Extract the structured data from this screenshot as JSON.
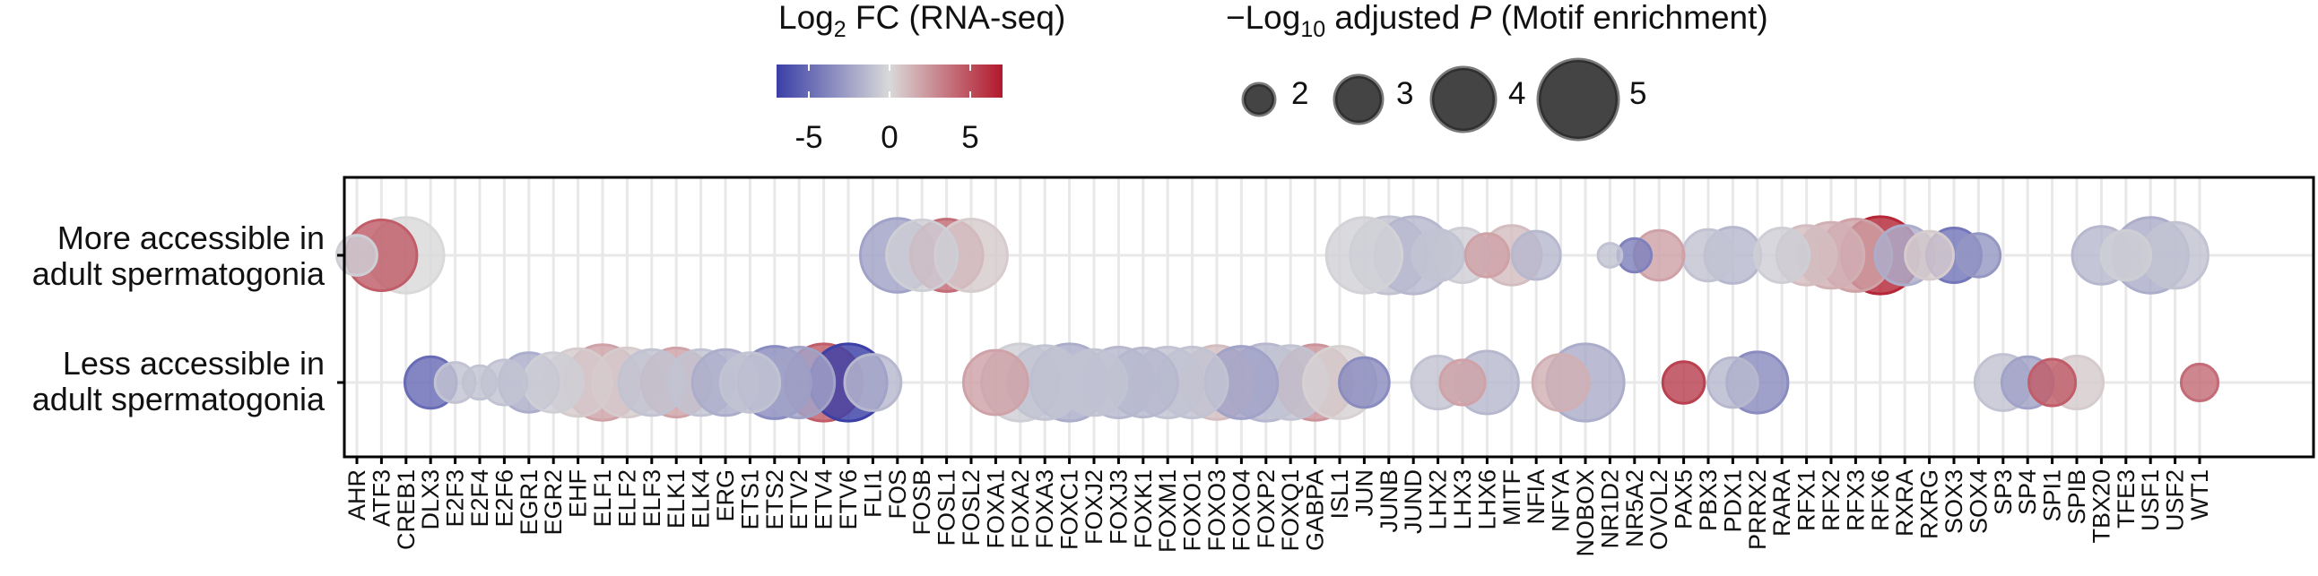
{
  "legend": {
    "color": {
      "title_prefix": "Log",
      "title_sub": "2",
      "title_suffix": " FC (RNA-seq)",
      "ticks": [
        -5,
        0,
        5
      ],
      "range": [
        -7,
        7
      ]
    },
    "size": {
      "title_prefix": "−Log",
      "title_sub": "10",
      "title_mid": " adjusted ",
      "title_italic": "P",
      "title_suffix": " (Motif enrichment)",
      "values": [
        2,
        3,
        4,
        5
      ]
    }
  },
  "colors": {
    "low": "#3b3fa6",
    "mid": "#d9d9d9",
    "high": "#b2182b",
    "grid": "#e8e8e8",
    "frame": "#000000",
    "marker_border_alpha": 0.25
  },
  "chart_data": {
    "type": "scatter",
    "rows": [
      {
        "id": "more",
        "label_line1": "More accessible in",
        "label_line2": "adult spermatogonia"
      },
      {
        "id": "less",
        "label_line1": "Less accessible in",
        "label_line2": "adult spermatogonia"
      }
    ],
    "categories": [
      "AHR",
      "ATF3",
      "CREB1",
      "DLX3",
      "E2F3",
      "E2F4",
      "E2F6",
      "EGR1",
      "EGR2",
      "EHF",
      "ELF1",
      "ELF2",
      "ELF3",
      "ELK1",
      "ELK4",
      "ERG",
      "ETS1",
      "ETS2",
      "ETV2",
      "ETV4",
      "ETV6",
      "FLI1",
      "FOS",
      "FOSB",
      "FOSL1",
      "FOSL2",
      "FOXA1",
      "FOXA2",
      "FOXA3",
      "FOXC1",
      "FOXJ2",
      "FOXJ3",
      "FOXK1",
      "FOXM1",
      "FOXO1",
      "FOXO3",
      "FOXO4",
      "FOXP2",
      "FOXQ1",
      "GABPA",
      "ISL1",
      "JUN",
      "JUNB",
      "JUND",
      "LHX2",
      "LHX3",
      "LHX6",
      "MITF",
      "NFIA",
      "NFYA",
      "NOBOX",
      "NR1D2",
      "NR5A2",
      "OVOL2",
      "PAX5",
      "PBX3",
      "PDX1",
      "PRRX2",
      "RARA",
      "RFX1",
      "RFX2",
      "RFX3",
      "RFX6",
      "RXRA",
      "RXRG",
      "SOX3",
      "SOX4",
      "SP3",
      "SP4",
      "SPI1",
      "SPIB",
      "TBX20",
      "TFE3",
      "USF1",
      "USF2",
      "WT1"
    ],
    "points": [
      {
        "tf": "AHR",
        "row": "more",
        "log2fc": -0.5,
        "neglog10p": 2.6
      },
      {
        "tf": "ATF3",
        "row": "more",
        "log2fc": 4.5,
        "neglog10p": 4.5
      },
      {
        "tf": "CREB1",
        "row": "more",
        "log2fc": 0.0,
        "neglog10p": 4.8
      },
      {
        "tf": "FOS",
        "row": "more",
        "log2fc": -2.5,
        "neglog10p": 4.7
      },
      {
        "tf": "FOSB",
        "row": "more",
        "log2fc": -0.5,
        "neglog10p": 4.5
      },
      {
        "tf": "FOSL1",
        "row": "more",
        "log2fc": 4.0,
        "neglog10p": 4.6
      },
      {
        "tf": "FOSL2",
        "row": "more",
        "log2fc": 0.5,
        "neglog10p": 4.6
      },
      {
        "tf": "JUN",
        "row": "more",
        "log2fc": -0.3,
        "neglog10p": 4.8
      },
      {
        "tf": "JUNB",
        "row": "more",
        "log2fc": -1.0,
        "neglog10p": 4.9
      },
      {
        "tf": "JUND",
        "row": "more",
        "log2fc": -1.5,
        "neglog10p": 4.9
      },
      {
        "tf": "LHX2",
        "row": "more",
        "log2fc": -1.0,
        "neglog10p": 3.3
      },
      {
        "tf": "LHX3",
        "row": "more",
        "log2fc": -0.5,
        "neglog10p": 3.5
      },
      {
        "tf": "LHX6",
        "row": "more",
        "log2fc": 2.0,
        "neglog10p": 2.8
      },
      {
        "tf": "MITF",
        "row": "more",
        "log2fc": 1.0,
        "neglog10p": 3.8
      },
      {
        "tf": "NFIA",
        "row": "more",
        "log2fc": -1.5,
        "neglog10p": 3.1
      },
      {
        "tf": "NR1D2",
        "row": "more",
        "log2fc": -1.0,
        "neglog10p": 1.6
      },
      {
        "tf": "NR5A2",
        "row": "more",
        "log2fc": -4.0,
        "neglog10p": 2.2
      },
      {
        "tf": "OVOL2",
        "row": "more",
        "log2fc": 2.0,
        "neglog10p": 3.2
      },
      {
        "tf": "PBX3",
        "row": "more",
        "log2fc": -1.0,
        "neglog10p": 3.3
      },
      {
        "tf": "PDX1",
        "row": "more",
        "log2fc": -1.5,
        "neglog10p": 3.6
      },
      {
        "tf": "RARA",
        "row": "more",
        "log2fc": -0.5,
        "neglog10p": 3.5
      },
      {
        "tf": "RFX1",
        "row": "more",
        "log2fc": 1.0,
        "neglog10p": 3.8
      },
      {
        "tf": "RFX2",
        "row": "more",
        "log2fc": 1.5,
        "neglog10p": 4.2
      },
      {
        "tf": "RFX3",
        "row": "more",
        "log2fc": 2.0,
        "neglog10p": 4.6
      },
      {
        "tf": "RFX6",
        "row": "more",
        "log2fc": 6.5,
        "neglog10p": 4.9
      },
      {
        "tf": "RXRA",
        "row": "more",
        "log2fc": -2.0,
        "neglog10p": 3.8
      },
      {
        "tf": "RXRG",
        "row": "more",
        "log2fc": 0.5,
        "neglog10p": 3.1
      },
      {
        "tf": "SOX3",
        "row": "more",
        "log2fc": -4.5,
        "neglog10p": 3.5
      },
      {
        "tf": "SOX4",
        "row": "more",
        "log2fc": -3.0,
        "neglog10p": 2.8
      },
      {
        "tf": "TBX20",
        "row": "more",
        "log2fc": -1.5,
        "neglog10p": 3.7
      },
      {
        "tf": "TFE3",
        "row": "more",
        "log2fc": -0.5,
        "neglog10p": 3.2
      },
      {
        "tf": "USF1",
        "row": "more",
        "log2fc": -2.0,
        "neglog10p": 4.8
      },
      {
        "tf": "USF2",
        "row": "more",
        "log2fc": -1.0,
        "neglog10p": 4.2
      },
      {
        "tf": "DLX3",
        "row": "less",
        "log2fc": -5.0,
        "neglog10p": 3.3
      },
      {
        "tf": "E2F3",
        "row": "less",
        "log2fc": -1.0,
        "neglog10p": 2.6
      },
      {
        "tf": "E2F4",
        "row": "less",
        "log2fc": -1.0,
        "neglog10p": 2.2
      },
      {
        "tf": "E2F6",
        "row": "less",
        "log2fc": -1.0,
        "neglog10p": 2.9
      },
      {
        "tf": "EGR1",
        "row": "less",
        "log2fc": -2.0,
        "neglog10p": 3.8
      },
      {
        "tf": "EGR2",
        "row": "less",
        "log2fc": -0.5,
        "neglog10p": 3.8
      },
      {
        "tf": "EHF",
        "row": "less",
        "log2fc": 0.5,
        "neglog10p": 4.3
      },
      {
        "tf": "ELF1",
        "row": "less",
        "log2fc": 2.0,
        "neglog10p": 4.8
      },
      {
        "tf": "ELF2",
        "row": "less",
        "log2fc": 0.5,
        "neglog10p": 4.4
      },
      {
        "tf": "ELF3",
        "row": "less",
        "log2fc": -1.0,
        "neglog10p": 4.2
      },
      {
        "tf": "ELK1",
        "row": "less",
        "log2fc": 2.0,
        "neglog10p": 4.4
      },
      {
        "tf": "ELK4",
        "row": "less",
        "log2fc": -1.0,
        "neglog10p": 4.2
      },
      {
        "tf": "ERG",
        "row": "less",
        "log2fc": -2.0,
        "neglog10p": 4.2
      },
      {
        "tf": "ETS1",
        "row": "less",
        "log2fc": -1.0,
        "neglog10p": 3.8
      },
      {
        "tf": "ETS2",
        "row": "less",
        "log2fc": -3.5,
        "neglog10p": 4.6
      },
      {
        "tf": "ETV2",
        "row": "less",
        "log2fc": -2.5,
        "neglog10p": 4.5
      },
      {
        "tf": "ETV4",
        "row": "less",
        "log2fc": 4.5,
        "neglog10p": 4.9
      },
      {
        "tf": "ETV6",
        "row": "less",
        "log2fc": -7.0,
        "neglog10p": 4.9
      },
      {
        "tf": "FLI1",
        "row": "less",
        "log2fc": -1.5,
        "neglog10p": 3.6
      },
      {
        "tf": "FOXA1",
        "row": "less",
        "log2fc": 2.0,
        "neglog10p": 4.1
      },
      {
        "tf": "FOXA2",
        "row": "less",
        "log2fc": -0.5,
        "neglog10p": 4.9
      },
      {
        "tf": "FOXA3",
        "row": "less",
        "log2fc": -1.0,
        "neglog10p": 4.7
      },
      {
        "tf": "FOXC1",
        "row": "less",
        "log2fc": -2.0,
        "neglog10p": 4.9
      },
      {
        "tf": "FOXJ2",
        "row": "less",
        "log2fc": -1.0,
        "neglog10p": 4.2
      },
      {
        "tf": "FOXJ3",
        "row": "less",
        "log2fc": -1.5,
        "neglog10p": 4.5
      },
      {
        "tf": "FOXK1",
        "row": "less",
        "log2fc": -1.5,
        "neglog10p": 4.4
      },
      {
        "tf": "FOXM1",
        "row": "less",
        "log2fc": -1.0,
        "neglog10p": 4.5
      },
      {
        "tf": "FOXO1",
        "row": "less",
        "log2fc": -1.0,
        "neglog10p": 4.5
      },
      {
        "tf": "FOXO3",
        "row": "less",
        "log2fc": 1.0,
        "neglog10p": 4.7
      },
      {
        "tf": "FOXO4",
        "row": "less",
        "log2fc": -2.5,
        "neglog10p": 4.6
      },
      {
        "tf": "FOXP2",
        "row": "less",
        "log2fc": -1.5,
        "neglog10p": 4.9
      },
      {
        "tf": "FOXQ1",
        "row": "less",
        "log2fc": -1.0,
        "neglog10p": 4.7
      },
      {
        "tf": "GABPA",
        "row": "less",
        "log2fc": 2.5,
        "neglog10p": 4.8
      },
      {
        "tf": "ISL1",
        "row": "less",
        "log2fc": 0.3,
        "neglog10p": 4.6
      },
      {
        "tf": "JUN",
        "row": "less",
        "log2fc": -3.5,
        "neglog10p": 3.2
      },
      {
        "tf": "LHX2",
        "row": "less",
        "log2fc": -1.0,
        "neglog10p": 3.4
      },
      {
        "tf": "LHX3",
        "row": "less",
        "log2fc": 2.0,
        "neglog10p": 2.9
      },
      {
        "tf": "LHX6",
        "row": "less",
        "log2fc": -1.5,
        "neglog10p": 4.0
      },
      {
        "tf": "NFYA",
        "row": "less",
        "log2fc": 1.5,
        "neglog10p": 3.6
      },
      {
        "tf": "NOBOX",
        "row": "less",
        "log2fc": -2.0,
        "neglog10p": 4.9
      },
      {
        "tf": "PAX5",
        "row": "less",
        "log2fc": 5.5,
        "neglog10p": 2.7
      },
      {
        "tf": "PDX1",
        "row": "less",
        "log2fc": -1.5,
        "neglog10p": 3.2
      },
      {
        "tf": "PRRX2",
        "row": "less",
        "log2fc": -3.5,
        "neglog10p": 3.9
      },
      {
        "tf": "SP3",
        "row": "less",
        "log2fc": -1.0,
        "neglog10p": 3.6
      },
      {
        "tf": "SP4",
        "row": "less",
        "log2fc": -2.5,
        "neglog10p": 3.3
      },
      {
        "tf": "SPI1",
        "row": "less",
        "log2fc": 4.5,
        "neglog10p": 3.0
      },
      {
        "tf": "SPIB",
        "row": "less",
        "log2fc": 0.5,
        "neglog10p": 3.4
      },
      {
        "tf": "WT1",
        "row": "less",
        "log2fc": 4.0,
        "neglog10p": 2.4
      }
    ]
  }
}
